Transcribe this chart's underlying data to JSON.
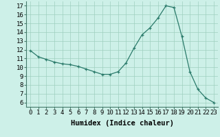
{
  "x": [
    0,
    1,
    2,
    3,
    4,
    5,
    6,
    7,
    8,
    9,
    10,
    11,
    12,
    13,
    14,
    15,
    16,
    17,
    18,
    19,
    20,
    21,
    22,
    23
  ],
  "y": [
    11.9,
    11.2,
    10.9,
    10.6,
    10.4,
    10.3,
    10.1,
    9.8,
    9.5,
    9.2,
    9.2,
    9.5,
    10.5,
    12.2,
    13.7,
    14.5,
    15.6,
    17.0,
    16.8,
    13.5,
    9.5,
    7.5,
    6.5,
    6.0
  ],
  "line_color": "#2a7a6a",
  "marker": "+",
  "bg_color": "#cdf0e8",
  "grid_color": "#9ecfbf",
  "xlabel": "Humidex (Indice chaleur)",
  "xlim": [
    -0.5,
    23.5
  ],
  "ylim": [
    5.5,
    17.5
  ],
  "yticks": [
    6,
    7,
    8,
    9,
    10,
    11,
    12,
    13,
    14,
    15,
    16,
    17
  ],
  "xticks": [
    0,
    1,
    2,
    3,
    4,
    5,
    6,
    7,
    8,
    9,
    10,
    11,
    12,
    13,
    14,
    15,
    16,
    17,
    18,
    19,
    20,
    21,
    22,
    23
  ],
  "xtick_labels": [
    "0",
    "1",
    "2",
    "3",
    "4",
    "5",
    "6",
    "7",
    "8",
    "9",
    "10",
    "11",
    "12",
    "13",
    "14",
    "15",
    "16",
    "17",
    "18",
    "19",
    "20",
    "21",
    "22",
    "23"
  ],
  "tick_fontsize": 6.5,
  "xlabel_fontsize": 7.5
}
